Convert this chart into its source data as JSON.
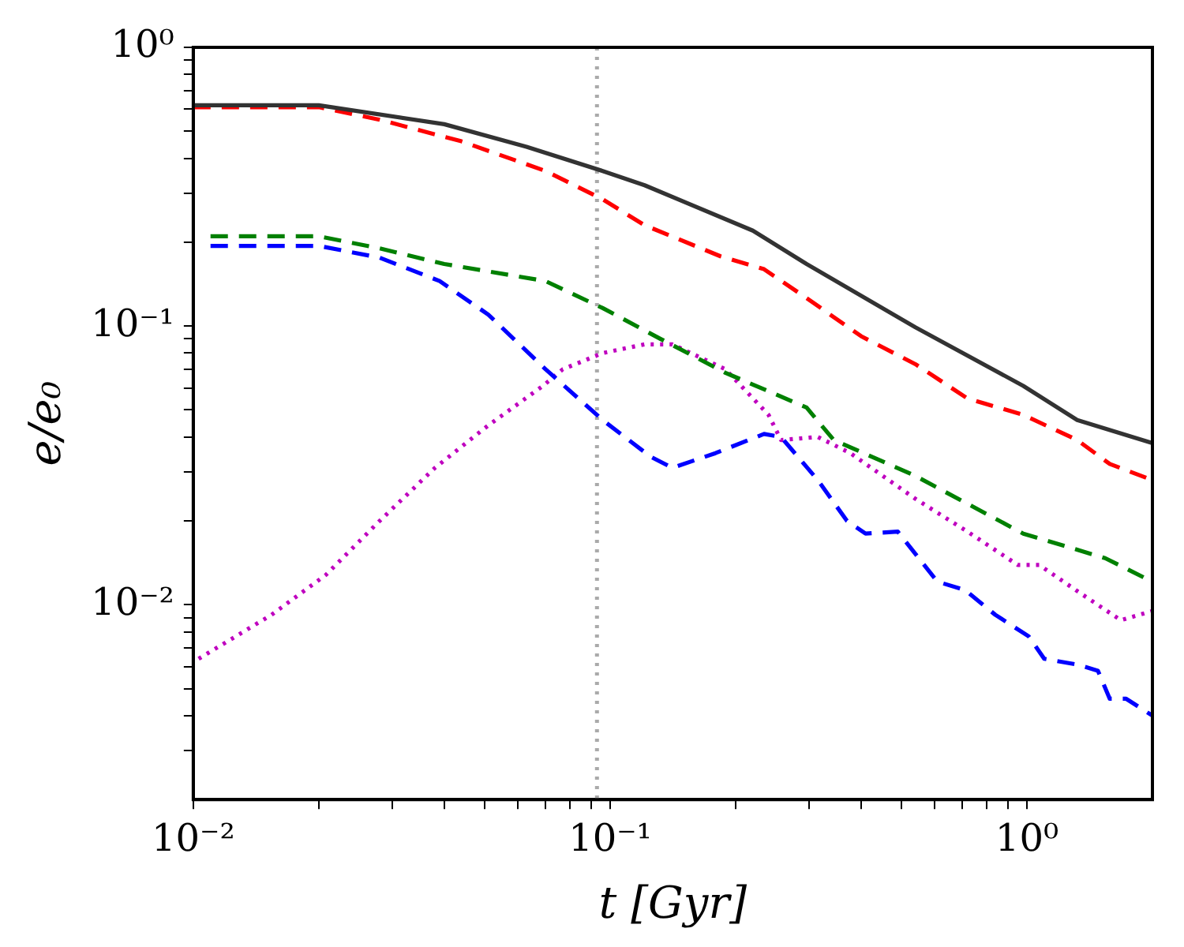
{
  "chart_data": {
    "type": "line",
    "xlabel": "t [Gyr]",
    "ylabel": "e/e₀",
    "log": "xy",
    "grid": false,
    "legend": false,
    "marker": "none",
    "xlim": [
      0.01,
      2
    ],
    "ylim": [
      0.002,
      1
    ],
    "xticks": [
      {
        "value": 0.01,
        "label": "10⁻²"
      },
      {
        "value": 0.02,
        "label": null
      },
      {
        "value": 0.03,
        "label": null
      },
      {
        "value": 0.04,
        "label": null
      },
      {
        "value": 0.05,
        "label": null
      },
      {
        "value": 0.06,
        "label": null
      },
      {
        "value": 0.07,
        "label": null
      },
      {
        "value": 0.08,
        "label": null
      },
      {
        "value": 0.09,
        "label": null
      },
      {
        "value": 0.1,
        "label": "10⁻¹"
      },
      {
        "value": 0.2,
        "label": null
      },
      {
        "value": 0.3,
        "label": null
      },
      {
        "value": 0.4,
        "label": null
      },
      {
        "value": 0.5,
        "label": null
      },
      {
        "value": 0.6,
        "label": null
      },
      {
        "value": 0.7,
        "label": null
      },
      {
        "value": 0.8,
        "label": null
      },
      {
        "value": 0.9,
        "label": null
      },
      {
        "value": 1,
        "label": "10⁰"
      }
    ],
    "yticks": [
      {
        "value": 0.003,
        "label": null
      },
      {
        "value": 0.004,
        "label": null
      },
      {
        "value": 0.005,
        "label": null
      },
      {
        "value": 0.006,
        "label": null
      },
      {
        "value": 0.007,
        "label": null
      },
      {
        "value": 0.008,
        "label": null
      },
      {
        "value": 0.009,
        "label": null
      },
      {
        "value": 0.01,
        "label": "10⁻²"
      },
      {
        "value": 0.02,
        "label": null
      },
      {
        "value": 0.03,
        "label": null
      },
      {
        "value": 0.04,
        "label": null
      },
      {
        "value": 0.05,
        "label": null
      },
      {
        "value": 0.06,
        "label": null
      },
      {
        "value": 0.07,
        "label": null
      },
      {
        "value": 0.08,
        "label": null
      },
      {
        "value": 0.09,
        "label": null
      },
      {
        "value": 0.1,
        "label": "10⁻¹"
      },
      {
        "value": 0.2,
        "label": null
      },
      {
        "value": 0.3,
        "label": null
      },
      {
        "value": 0.4,
        "label": null
      },
      {
        "value": 0.5,
        "label": null
      },
      {
        "value": 0.6,
        "label": null
      },
      {
        "value": 0.7,
        "label": null
      },
      {
        "value": 0.8,
        "label": null
      },
      {
        "value": 0.9,
        "label": null
      },
      {
        "value": 1,
        "label": "10⁰"
      }
    ],
    "ref_lines": [
      {
        "axis": "x",
        "value": 0.093,
        "color": "#aaaaaa",
        "line_style": "dotted"
      }
    ],
    "series": [
      {
        "color": "#333333",
        "line_style": "solid",
        "x": [
          0.01,
          0.02,
          0.04,
          0.063,
          0.096,
          0.121,
          0.22,
          0.296,
          0.54,
          0.98,
          1.32,
          2.0
        ],
        "values": [
          0.62,
          0.62,
          0.53,
          0.44,
          0.36,
          0.32,
          0.22,
          0.167,
          0.099,
          0.061,
          0.046,
          0.038
        ]
      },
      {
        "color": "#ff0000",
        "line_style": "dashed",
        "x": [
          0.01,
          0.02,
          0.028,
          0.044,
          0.07,
          0.096,
          0.121,
          0.184,
          0.234,
          0.296,
          0.4,
          0.54,
          0.72,
          0.98,
          1.32,
          1.58,
          2.0
        ],
        "values": [
          0.61,
          0.61,
          0.55,
          0.46,
          0.36,
          0.285,
          0.23,
          0.178,
          0.16,
          0.126,
          0.092,
          0.073,
          0.055,
          0.048,
          0.039,
          0.032,
          0.028
        ]
      },
      {
        "color": "#008000",
        "line_style": "dashed",
        "x": [
          0.011,
          0.02,
          0.028,
          0.04,
          0.07,
          0.096,
          0.132,
          0.189,
          0.296,
          0.344,
          0.54,
          0.98,
          1.54,
          2.0
        ],
        "values": [
          0.21,
          0.21,
          0.19,
          0.167,
          0.145,
          0.116,
          0.09,
          0.068,
          0.051,
          0.039,
          0.029,
          0.018,
          0.0147,
          0.0121
        ]
      },
      {
        "color": "#0000ff",
        "line_style": "dashed",
        "x": [
          0.011,
          0.02,
          0.028,
          0.039,
          0.051,
          0.07,
          0.096,
          0.125,
          0.141,
          0.179,
          0.234,
          0.257,
          0.315,
          0.37,
          0.41,
          0.49,
          0.61,
          0.71,
          0.84,
          1.01,
          1.1,
          1.32,
          1.48,
          1.58,
          1.73,
          2.0
        ],
        "values": [
          0.194,
          0.194,
          0.176,
          0.145,
          0.11,
          0.07,
          0.046,
          0.034,
          0.031,
          0.035,
          0.041,
          0.04,
          0.028,
          0.02,
          0.018,
          0.0183,
          0.0121,
          0.0113,
          0.0092,
          0.0077,
          0.0064,
          0.0061,
          0.0058,
          0.0046,
          0.0046,
          0.004
        ]
      },
      {
        "color": "#bf00bf",
        "line_style": "dotted",
        "x": [
          0.0103,
          0.0154,
          0.0208,
          0.028,
          0.038,
          0.051,
          0.069,
          0.077,
          0.096,
          0.121,
          0.141,
          0.189,
          0.24,
          0.257,
          0.315,
          0.377,
          0.54,
          0.72,
          0.95,
          1.07,
          1.32,
          1.68,
          2.0
        ],
        "values": [
          0.0064,
          0.0092,
          0.0128,
          0.02,
          0.031,
          0.044,
          0.061,
          0.07,
          0.08,
          0.086,
          0.086,
          0.07,
          0.048,
          0.039,
          0.04,
          0.035,
          0.024,
          0.0183,
          0.0139,
          0.0139,
          0.0112,
          0.0088,
          0.0095
        ]
      }
    ]
  }
}
